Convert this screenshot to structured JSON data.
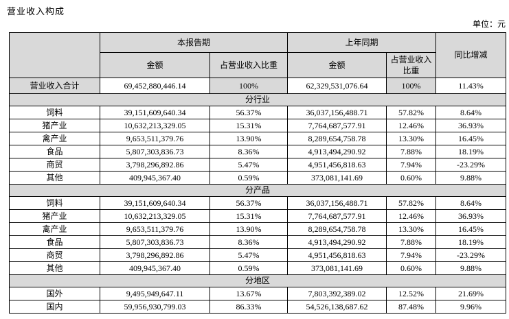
{
  "page": {
    "title": "营业收入构成",
    "unit_label": "单位：元"
  },
  "colors": {
    "header_fill": "#d9d9d9",
    "border": "#000000",
    "background": "#ffffff",
    "text": "#000000"
  },
  "table": {
    "header": {
      "corner": "",
      "current_period": "本报告期",
      "prior_period": "上年同期",
      "yoy_change": "同比增减",
      "amount": "金额",
      "share": "占营业收入比重"
    },
    "total_row": {
      "label": "营业收入合计",
      "current_amount": "69,452,880,446.14",
      "current_share": "100%",
      "prior_amount": "62,329,531,076.64",
      "prior_share": "100%",
      "yoy": "11.43%"
    },
    "sections": [
      {
        "title": "分行业",
        "rows": [
          {
            "label": "饲料",
            "current_amount": "39,151,609,640.34",
            "current_share": "56.37%",
            "prior_amount": "36,037,156,488.71",
            "prior_share": "57.82%",
            "yoy": "8.64%"
          },
          {
            "label": "猪产业",
            "current_amount": "10,632,213,329.05",
            "current_share": "15.31%",
            "prior_amount": "7,764,687,577.91",
            "prior_share": "12.46%",
            "yoy": "36.93%"
          },
          {
            "label": "禽产业",
            "current_amount": "9,653,511,379.76",
            "current_share": "13.90%",
            "prior_amount": "8,289,654,758.78",
            "prior_share": "13.30%",
            "yoy": "16.45%"
          },
          {
            "label": "食品",
            "current_amount": "5,807,303,836.73",
            "current_share": "8.36%",
            "prior_amount": "4,913,494,290.92",
            "prior_share": "7.88%",
            "yoy": "18.19%"
          },
          {
            "label": "商贸",
            "current_amount": "3,798,296,892.86",
            "current_share": "5.47%",
            "prior_amount": "4,951,456,818.63",
            "prior_share": "7.94%",
            "yoy": "-23.29%"
          },
          {
            "label": "其他",
            "current_amount": "409,945,367.40",
            "current_share": "0.59%",
            "prior_amount": "373,081,141.69",
            "prior_share": "0.60%",
            "yoy": "9.88%"
          }
        ]
      },
      {
        "title": "分产品",
        "rows": [
          {
            "label": "饲料",
            "current_amount": "39,151,609,640.34",
            "current_share": "56.37%",
            "prior_amount": "36,037,156,488.71",
            "prior_share": "57.82%",
            "yoy": "8.64%"
          },
          {
            "label": "猪产业",
            "current_amount": "10,632,213,329.05",
            "current_share": "15.31%",
            "prior_amount": "7,764,687,577.91",
            "prior_share": "12.46%",
            "yoy": "36.93%"
          },
          {
            "label": "禽产业",
            "current_amount": "9,653,511,379.76",
            "current_share": "13.90%",
            "prior_amount": "8,289,654,758.78",
            "prior_share": "13.30%",
            "yoy": "16.45%"
          },
          {
            "label": "食品",
            "current_amount": "5,807,303,836.73",
            "current_share": "8.36%",
            "prior_amount": "4,913,494,290.92",
            "prior_share": "7.88%",
            "yoy": "18.19%"
          },
          {
            "label": "商贸",
            "current_amount": "3,798,296,892.86",
            "current_share": "5.47%",
            "prior_amount": "4,951,456,818.63",
            "prior_share": "7.94%",
            "yoy": "-23.29%"
          },
          {
            "label": "其他",
            "current_amount": "409,945,367.40",
            "current_share": "0.59%",
            "prior_amount": "373,081,141.69",
            "prior_share": "0.60%",
            "yoy": "9.88%"
          }
        ]
      },
      {
        "title": "分地区",
        "rows": [
          {
            "label": "国外",
            "current_amount": "9,495,949,647.11",
            "current_share": "13.67%",
            "prior_amount": "7,803,392,389.02",
            "prior_share": "12.52%",
            "yoy": "21.69%"
          },
          {
            "label": "国内",
            "current_amount": "59,956,930,799.03",
            "current_share": "86.33%",
            "prior_amount": "54,526,138,687.62",
            "prior_share": "87.48%",
            "yoy": "9.96%"
          }
        ]
      }
    ]
  }
}
